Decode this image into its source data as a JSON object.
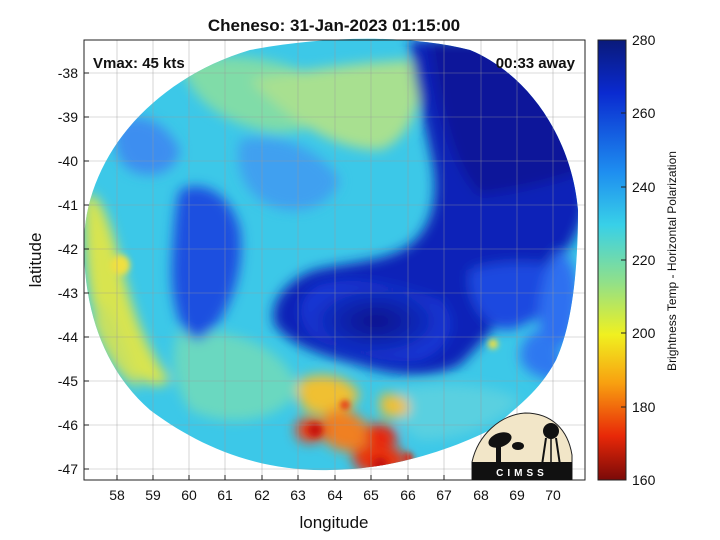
{
  "title": "Cheneso: 31-Jan-2023 01:15:00",
  "annotations": {
    "vmax": "Vmax: 45 kts",
    "away": "00:33 away"
  },
  "axes": {
    "xlabel": "longitude",
    "ylabel": "latitude",
    "xticks": [
      "58",
      "59",
      "60",
      "61",
      "62",
      "63",
      "64",
      "65",
      "66",
      "67",
      "68",
      "69",
      "70"
    ],
    "yticks": [
      "-38",
      "-39",
      "-40",
      "-41",
      "-42",
      "-43",
      "-44",
      "-45",
      "-46",
      "-47"
    ]
  },
  "colorbar": {
    "label": "Brightness Temp - Horizontal Polarization",
    "ticks": [
      "280",
      "260",
      "240",
      "220",
      "200",
      "180",
      "160"
    ],
    "min": 160,
    "max": 280,
    "colormap": "jet"
  },
  "logo": {
    "text": "CIMSS"
  },
  "colors": {
    "deep_blue": "#0a1aa8",
    "blue": "#1e50e0",
    "cyan": "#3cc8e8",
    "green_cyan": "#7ad8b0",
    "yellow": "#e8e040",
    "red": "#e02810"
  }
}
